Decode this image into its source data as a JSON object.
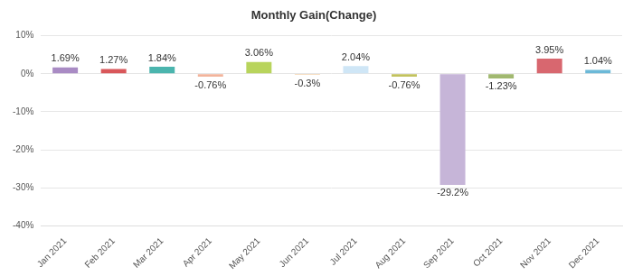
{
  "chart_data": {
    "type": "bar",
    "title": "Monthly Gain(Change)",
    "categories": [
      "Jan 2021",
      "Feb 2021",
      "Mar 2021",
      "Apr 2021",
      "May 2021",
      "Jun 2021",
      "Jul 2021",
      "Aug 2021",
      "Sep 2021",
      "Oct 2021",
      "Nov 2021",
      "Dec 2021"
    ],
    "values": [
      1.69,
      1.27,
      1.84,
      -0.76,
      3.06,
      -0.3,
      2.04,
      -0.76,
      -29.2,
      -1.23,
      3.95,
      1.04
    ],
    "value_labels": [
      "1.69%",
      "1.27%",
      "1.84%",
      "-0.76%",
      "3.06%",
      "-0.3%",
      "2.04%",
      "-0.76%",
      "-29.2%",
      "-1.23%",
      "3.95%",
      "1.04%"
    ],
    "colors": [
      "#a98bc4",
      "#d9575a",
      "#4bb5ae",
      "#f2b49c",
      "#b8d45c",
      "#f4d4ae",
      "#cfe6f6",
      "#c2c25e",
      "#c6b5d8",
      "#a1b870",
      "#d8676f",
      "#6cb9d8"
    ],
    "ylim": [
      -40,
      10
    ],
    "yticks": [
      {
        "value": -40,
        "label": "-40%"
      },
      {
        "value": -30,
        "label": "-30%"
      },
      {
        "value": -20,
        "label": "-20%"
      },
      {
        "value": -10,
        "label": "-10%"
      },
      {
        "value": 0,
        "label": "0%"
      },
      {
        "value": 10,
        "label": "10%"
      }
    ],
    "grid": true,
    "data_labels": true
  }
}
